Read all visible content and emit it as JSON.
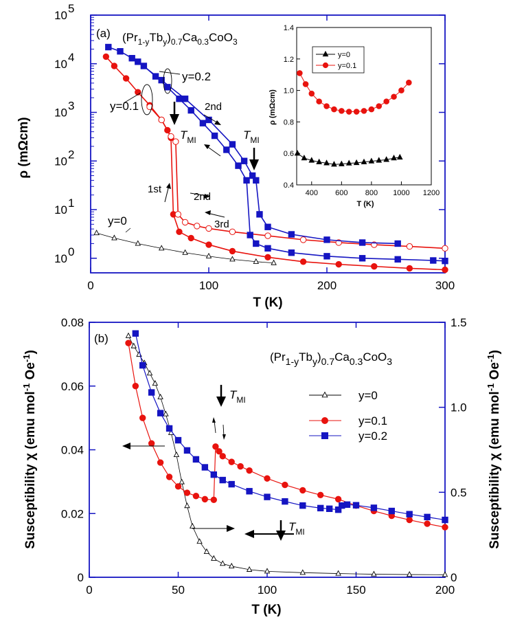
{
  "chart_data": [
    {
      "id": "a",
      "type": "line",
      "panel_label": "(a)",
      "formula": {
        "base": "(Pr",
        "s1": "1-y",
        "t1": "Tb",
        "s2": "y",
        "t2": ")",
        "s3": "0.7",
        "t3": "Ca",
        "s4": "0.3",
        "t4": "CoO",
        "s5": "3"
      },
      "xlabel": "T (K)",
      "ylabel": "ρ (mΩcm)",
      "xlim": [
        0,
        300
      ],
      "ylim_log10": [
        -0.3,
        5
      ],
      "y_scale": "log",
      "x_ticks": [
        0,
        100,
        200,
        300
      ],
      "y_ticks": [
        "10",
        "10",
        "10",
        "10",
        "10",
        "10"
      ],
      "y_tick_exp": [
        "0",
        "1",
        "2",
        "3",
        "4",
        "5"
      ],
      "series": [
        {
          "name": "y=0",
          "color": "#000000",
          "marker": "triangle-open",
          "x": [
            5,
            20,
            40,
            60,
            80,
            100,
            120,
            140,
            155
          ],
          "y": [
            3.3,
            2.6,
            2.0,
            1.6,
            1.3,
            1.1,
            0.95,
            0.85,
            0.8
          ]
        },
        {
          "name": "y=0.1 cooling",
          "color": "#e8130e",
          "marker": "circle-filled",
          "x": [
            13,
            20,
            30,
            40,
            50,
            60,
            65,
            68,
            70,
            75,
            85,
            100,
            120,
            150,
            180,
            210,
            240,
            270,
            300
          ],
          "y": [
            14000,
            9000,
            5000,
            2600,
            1400,
            700,
            430,
            300,
            8,
            3.5,
            2.6,
            1.9,
            1.4,
            1.05,
            0.85,
            0.75,
            0.68,
            0.62,
            0.58
          ]
        },
        {
          "name": "y=0.1 warming",
          "color": "#e8130e",
          "marker": "circle-open",
          "x": [
            50,
            60,
            68,
            72,
            74,
            80,
            90,
            100,
            120,
            150,
            180,
            210,
            240,
            270,
            300
          ],
          "y": [
            1300,
            700,
            320,
            250,
            8,
            5.5,
            4.6,
            4.1,
            3.5,
            2.9,
            2.4,
            2.1,
            1.9,
            1.75,
            1.6
          ]
        },
        {
          "name": "y=0.2 cooling",
          "color": "#1515c2",
          "marker": "square-filled",
          "x": [
            15,
            25,
            35,
            45,
            55,
            65,
            75,
            85,
            95,
            105,
            115,
            125,
            132,
            135,
            140,
            150,
            170,
            200,
            230,
            260,
            290,
            300
          ],
          "y": [
            22000,
            18000,
            13000,
            9000,
            5500,
            3300,
            1900,
            1100,
            600,
            330,
            170,
            80,
            40,
            3,
            2.0,
            1.6,
            1.3,
            1.1,
            1.0,
            0.95,
            0.9,
            0.88
          ]
        },
        {
          "name": "y=0.2 warming",
          "color": "#1515c2",
          "marker": "square-filled",
          "x": [
            40,
            60,
            80,
            100,
            120,
            130,
            137,
            140,
            143,
            150,
            170,
            200,
            230,
            260
          ],
          "y": [
            11000,
            4600,
            1900,
            700,
            220,
            100,
            50,
            40,
            8,
            4.4,
            3.1,
            2.4,
            2.1,
            2.0
          ]
        }
      ],
      "annotations": [
        {
          "text": "y=0.2"
        },
        {
          "text": "y=0.1"
        },
        {
          "text": "y=0"
        },
        {
          "text": "2nd"
        },
        {
          "text": "2nd"
        },
        {
          "text": "1st"
        },
        {
          "text": "3rd"
        },
        {
          "text": "T",
          "sub": "MI"
        },
        {
          "text": "T",
          "sub": "MI"
        }
      ],
      "inset": {
        "type": "line",
        "xlabel": "T (K)",
        "ylabel": "ρ (mΩcm)",
        "xlim": [
          300,
          1200
        ],
        "ylim": [
          0.4,
          1.4
        ],
        "x_ticks": [
          400,
          600,
          800,
          1000,
          1200
        ],
        "y_ticks": [
          "0.4",
          "0.6",
          "0.8",
          "1.0",
          "1.2",
          "1.4"
        ],
        "legend": [
          "y=0",
          "y=0.1"
        ],
        "legend_position": "top-left",
        "series": [
          {
            "name": "y=0",
            "color": "#000000",
            "marker": "triangle-filled",
            "x": [
              305,
              350,
              400,
              450,
              500,
              550,
              600,
              650,
              700,
              750,
              800,
              850,
              900,
              950,
              990
            ],
            "y": [
              0.6,
              0.57,
              0.555,
              0.545,
              0.538,
              0.53,
              0.532,
              0.537,
              0.54,
              0.545,
              0.55,
              0.555,
              0.56,
              0.57,
              0.575
            ]
          },
          {
            "name": "y=0.1",
            "color": "#e8130e",
            "marker": "circle-filled",
            "x": [
              320,
              360,
              400,
              450,
              500,
              550,
              600,
              650,
              700,
              750,
              800,
              850,
              900,
              950,
              1000,
              1050
            ],
            "y": [
              1.11,
              1.04,
              0.98,
              0.93,
              0.9,
              0.88,
              0.87,
              0.865,
              0.865,
              0.87,
              0.88,
              0.9,
              0.93,
              0.96,
              1.0,
              1.05
            ]
          }
        ]
      }
    },
    {
      "id": "b",
      "type": "line",
      "panel_label": "(b)",
      "formula": {
        "base": "(Pr",
        "s1": "1-y",
        "t1": "Tb",
        "s2": "y",
        "t2": ")",
        "s3": "0.7",
        "t3": "Ca",
        "s4": "0.3",
        "t4": "CoO",
        "s5": "3"
      },
      "xlabel": "T (K)",
      "ylabel": "Susceptibility χ (emu mol  Oe )",
      "ylabel_right": "Susceptibility χ (emu mol  Oe )",
      "ylabel_exp": "-1",
      "xlim": [
        0,
        200
      ],
      "ylim": [
        0,
        0.08
      ],
      "ylim_right": [
        0,
        1.5
      ],
      "x_ticks": [
        0,
        50,
        100,
        150,
        200
      ],
      "y_ticks": [
        "0",
        "0.02",
        "0.04",
        "0.06",
        "0.08"
      ],
      "y_ticks_right": [
        "0",
        "0.5",
        "1.0",
        "1.5"
      ],
      "legend": [
        "y=0",
        "y=0.1",
        "y=0.2"
      ],
      "legend_position": "right",
      "series": [
        {
          "name": "y=0",
          "axis": "right",
          "color": "#000000",
          "marker": "triangle-open",
          "x": [
            22,
            25,
            28,
            31,
            34,
            37,
            40,
            43,
            46,
            49,
            52,
            55,
            58,
            62,
            66,
            70,
            75,
            80,
            90,
            100,
            120,
            140,
            160,
            180,
            200
          ],
          "y": [
            1.42,
            1.36,
            1.31,
            1.26,
            1.2,
            1.14,
            1.06,
            0.96,
            0.85,
            0.72,
            0.56,
            0.42,
            0.3,
            0.21,
            0.15,
            0.11,
            0.08,
            0.065,
            0.045,
            0.035,
            0.027,
            0.022,
            0.018,
            0.016,
            0.015
          ]
        },
        {
          "name": "y=0.1",
          "axis": "left",
          "color": "#e8130e",
          "marker": "circle-filled",
          "x": [
            22,
            26,
            30,
            35,
            40,
            45,
            50,
            55,
            60,
            65,
            70,
            71,
            73,
            75,
            80,
            85,
            90,
            100,
            110,
            120,
            130,
            140,
            150,
            160,
            170,
            180,
            190,
            200
          ],
          "y": [
            0.0735,
            0.06,
            0.05,
            0.042,
            0.036,
            0.0315,
            0.0285,
            0.0265,
            0.0255,
            0.0245,
            0.0243,
            0.041,
            0.0395,
            0.038,
            0.0362,
            0.0348,
            0.0335,
            0.031,
            0.029,
            0.0273,
            0.0258,
            0.0245,
            0.0225,
            0.0208,
            0.0193,
            0.018,
            0.0168,
            0.0157
          ]
        },
        {
          "name": "y=0.2",
          "axis": "left",
          "color": "#1515c2",
          "marker": "square-filled",
          "x": [
            26,
            30,
            35,
            40,
            45,
            50,
            55,
            60,
            65,
            70,
            75,
            80,
            90,
            100,
            110,
            120,
            130,
            135,
            140,
            142,
            145,
            150,
            160,
            170,
            180,
            190,
            200
          ],
          "y": [
            0.0765,
            0.0665,
            0.058,
            0.0515,
            0.0467,
            0.043,
            0.0398,
            0.037,
            0.0345,
            0.0322,
            0.0305,
            0.0292,
            0.027,
            0.0252,
            0.0238,
            0.0225,
            0.0217,
            0.0215,
            0.0212,
            0.0225,
            0.0228,
            0.0226,
            0.0218,
            0.0208,
            0.0198,
            0.0189,
            0.018
          ]
        }
      ],
      "annotations": [
        {
          "text": "T",
          "sub": "MI"
        },
        {
          "text": "T",
          "sub": "MI"
        }
      ]
    }
  ]
}
